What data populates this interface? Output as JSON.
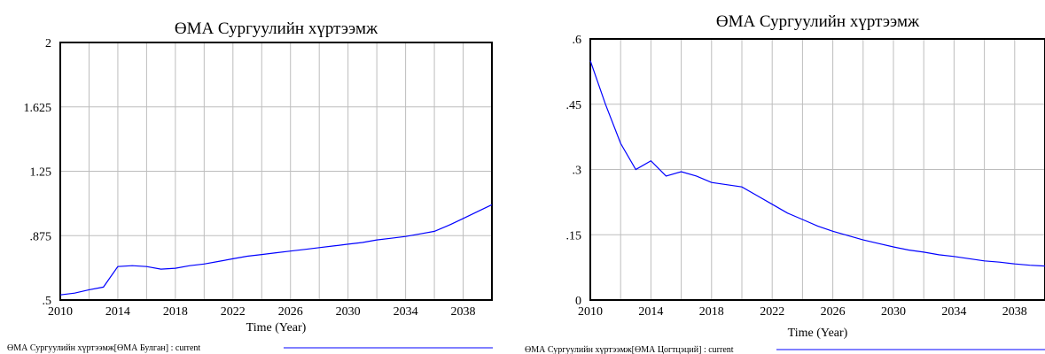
{
  "chart_data": [
    {
      "type": "line",
      "title": "ӨМА Сургуулийн хүртээмж",
      "xlabel": "Time (Year)",
      "ylabel": "",
      "xlim": [
        2010,
        2040
      ],
      "ylim": [
        0.5,
        2
      ],
      "x_ticks": [
        "2010",
        "2014",
        "2018",
        "2022",
        "2026",
        "2030",
        "2034",
        "2038"
      ],
      "y_ticks": [
        ".5",
        ".875",
        "1.25",
        "1.625",
        "2"
      ],
      "grid": true,
      "color": "#0000ff",
      "series": [
        {
          "name": "ӨМА Сургуулийн хүртээмж[ӨМА Булган] : current",
          "x": [
            2010,
            2011,
            2012,
            2013,
            2014,
            2015,
            2016,
            2017,
            2018,
            2019,
            2020,
            2021,
            2022,
            2023,
            2024,
            2025,
            2026,
            2027,
            2028,
            2029,
            2030,
            2031,
            2032,
            2033,
            2034,
            2035,
            2036,
            2037,
            2038,
            2039,
            2040
          ],
          "y": [
            0.53,
            0.54,
            0.56,
            0.575,
            0.695,
            0.7,
            0.695,
            0.68,
            0.685,
            0.7,
            0.71,
            0.725,
            0.74,
            0.755,
            0.765,
            0.775,
            0.785,
            0.795,
            0.805,
            0.815,
            0.825,
            0.835,
            0.85,
            0.86,
            0.87,
            0.885,
            0.9,
            0.935,
            0.975,
            1.015,
            1.055
          ]
        }
      ]
    },
    {
      "type": "line",
      "title": "ӨМА Сургуулийн хүртээмж",
      "xlabel": "Time (Year)",
      "ylabel": "",
      "xlim": [
        2010,
        2040
      ],
      "ylim": [
        0,
        0.6
      ],
      "x_ticks": [
        "2010",
        "2014",
        "2018",
        "2022",
        "2026",
        "2030",
        "2034",
        "2038"
      ],
      "y_ticks": [
        "0",
        ".15",
        ".3",
        ".45",
        ".6"
      ],
      "grid": true,
      "color": "#0000ff",
      "series": [
        {
          "name": "ӨМА Сургуулийн хүртээмж[ӨМА Цогтцэций] : current",
          "x": [
            2010,
            2011,
            2012,
            2013,
            2014,
            2015,
            2016,
            2017,
            2018,
            2019,
            2020,
            2021,
            2022,
            2023,
            2024,
            2025,
            2026,
            2027,
            2028,
            2029,
            2030,
            2031,
            2032,
            2033,
            2034,
            2035,
            2036,
            2037,
            2038,
            2039,
            2040
          ],
          "y": [
            0.55,
            0.45,
            0.36,
            0.3,
            0.32,
            0.285,
            0.295,
            0.285,
            0.27,
            0.265,
            0.26,
            0.24,
            0.22,
            0.2,
            0.185,
            0.17,
            0.158,
            0.148,
            0.138,
            0.13,
            0.122,
            0.115,
            0.11,
            0.104,
            0.1,
            0.095,
            0.09,
            0.087,
            0.083,
            0.08,
            0.078
          ]
        }
      ]
    }
  ]
}
